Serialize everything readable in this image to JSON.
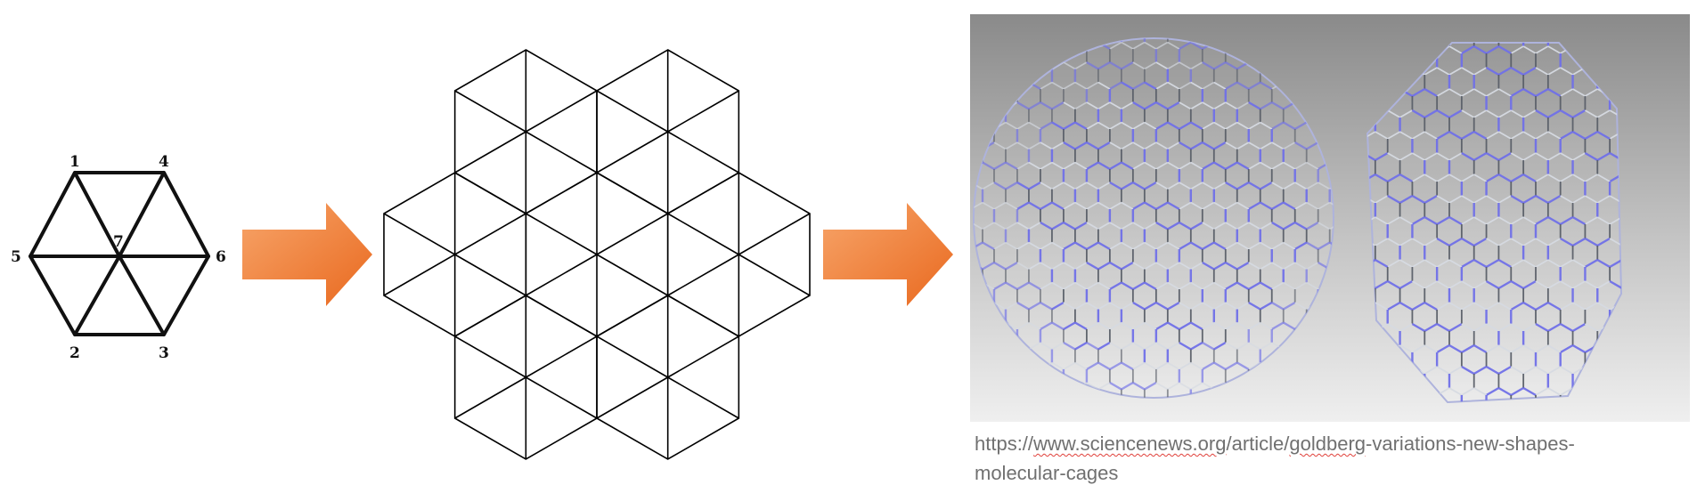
{
  "figure": {
    "vertex_labels": [
      "1",
      "2",
      "3",
      "4",
      "5",
      "6",
      "7"
    ],
    "caption": {
      "line1_parts": [
        "https://",
        "www.sciencenews.org",
        "/article/",
        "goldberg",
        "-variations-new-shapes-"
      ],
      "line2": "molecular-cages"
    },
    "colors": {
      "arrow_light": "#f7a56a",
      "arrow_dark": "#e9691f",
      "cage_blue": "#7070e8",
      "cage_grey": "#c8ccd4",
      "backdrop_top": "#8a8a8a",
      "backdrop_bottom": "#efefef",
      "caption_text": "#707070",
      "misspell_underline": "#e0403a"
    }
  }
}
